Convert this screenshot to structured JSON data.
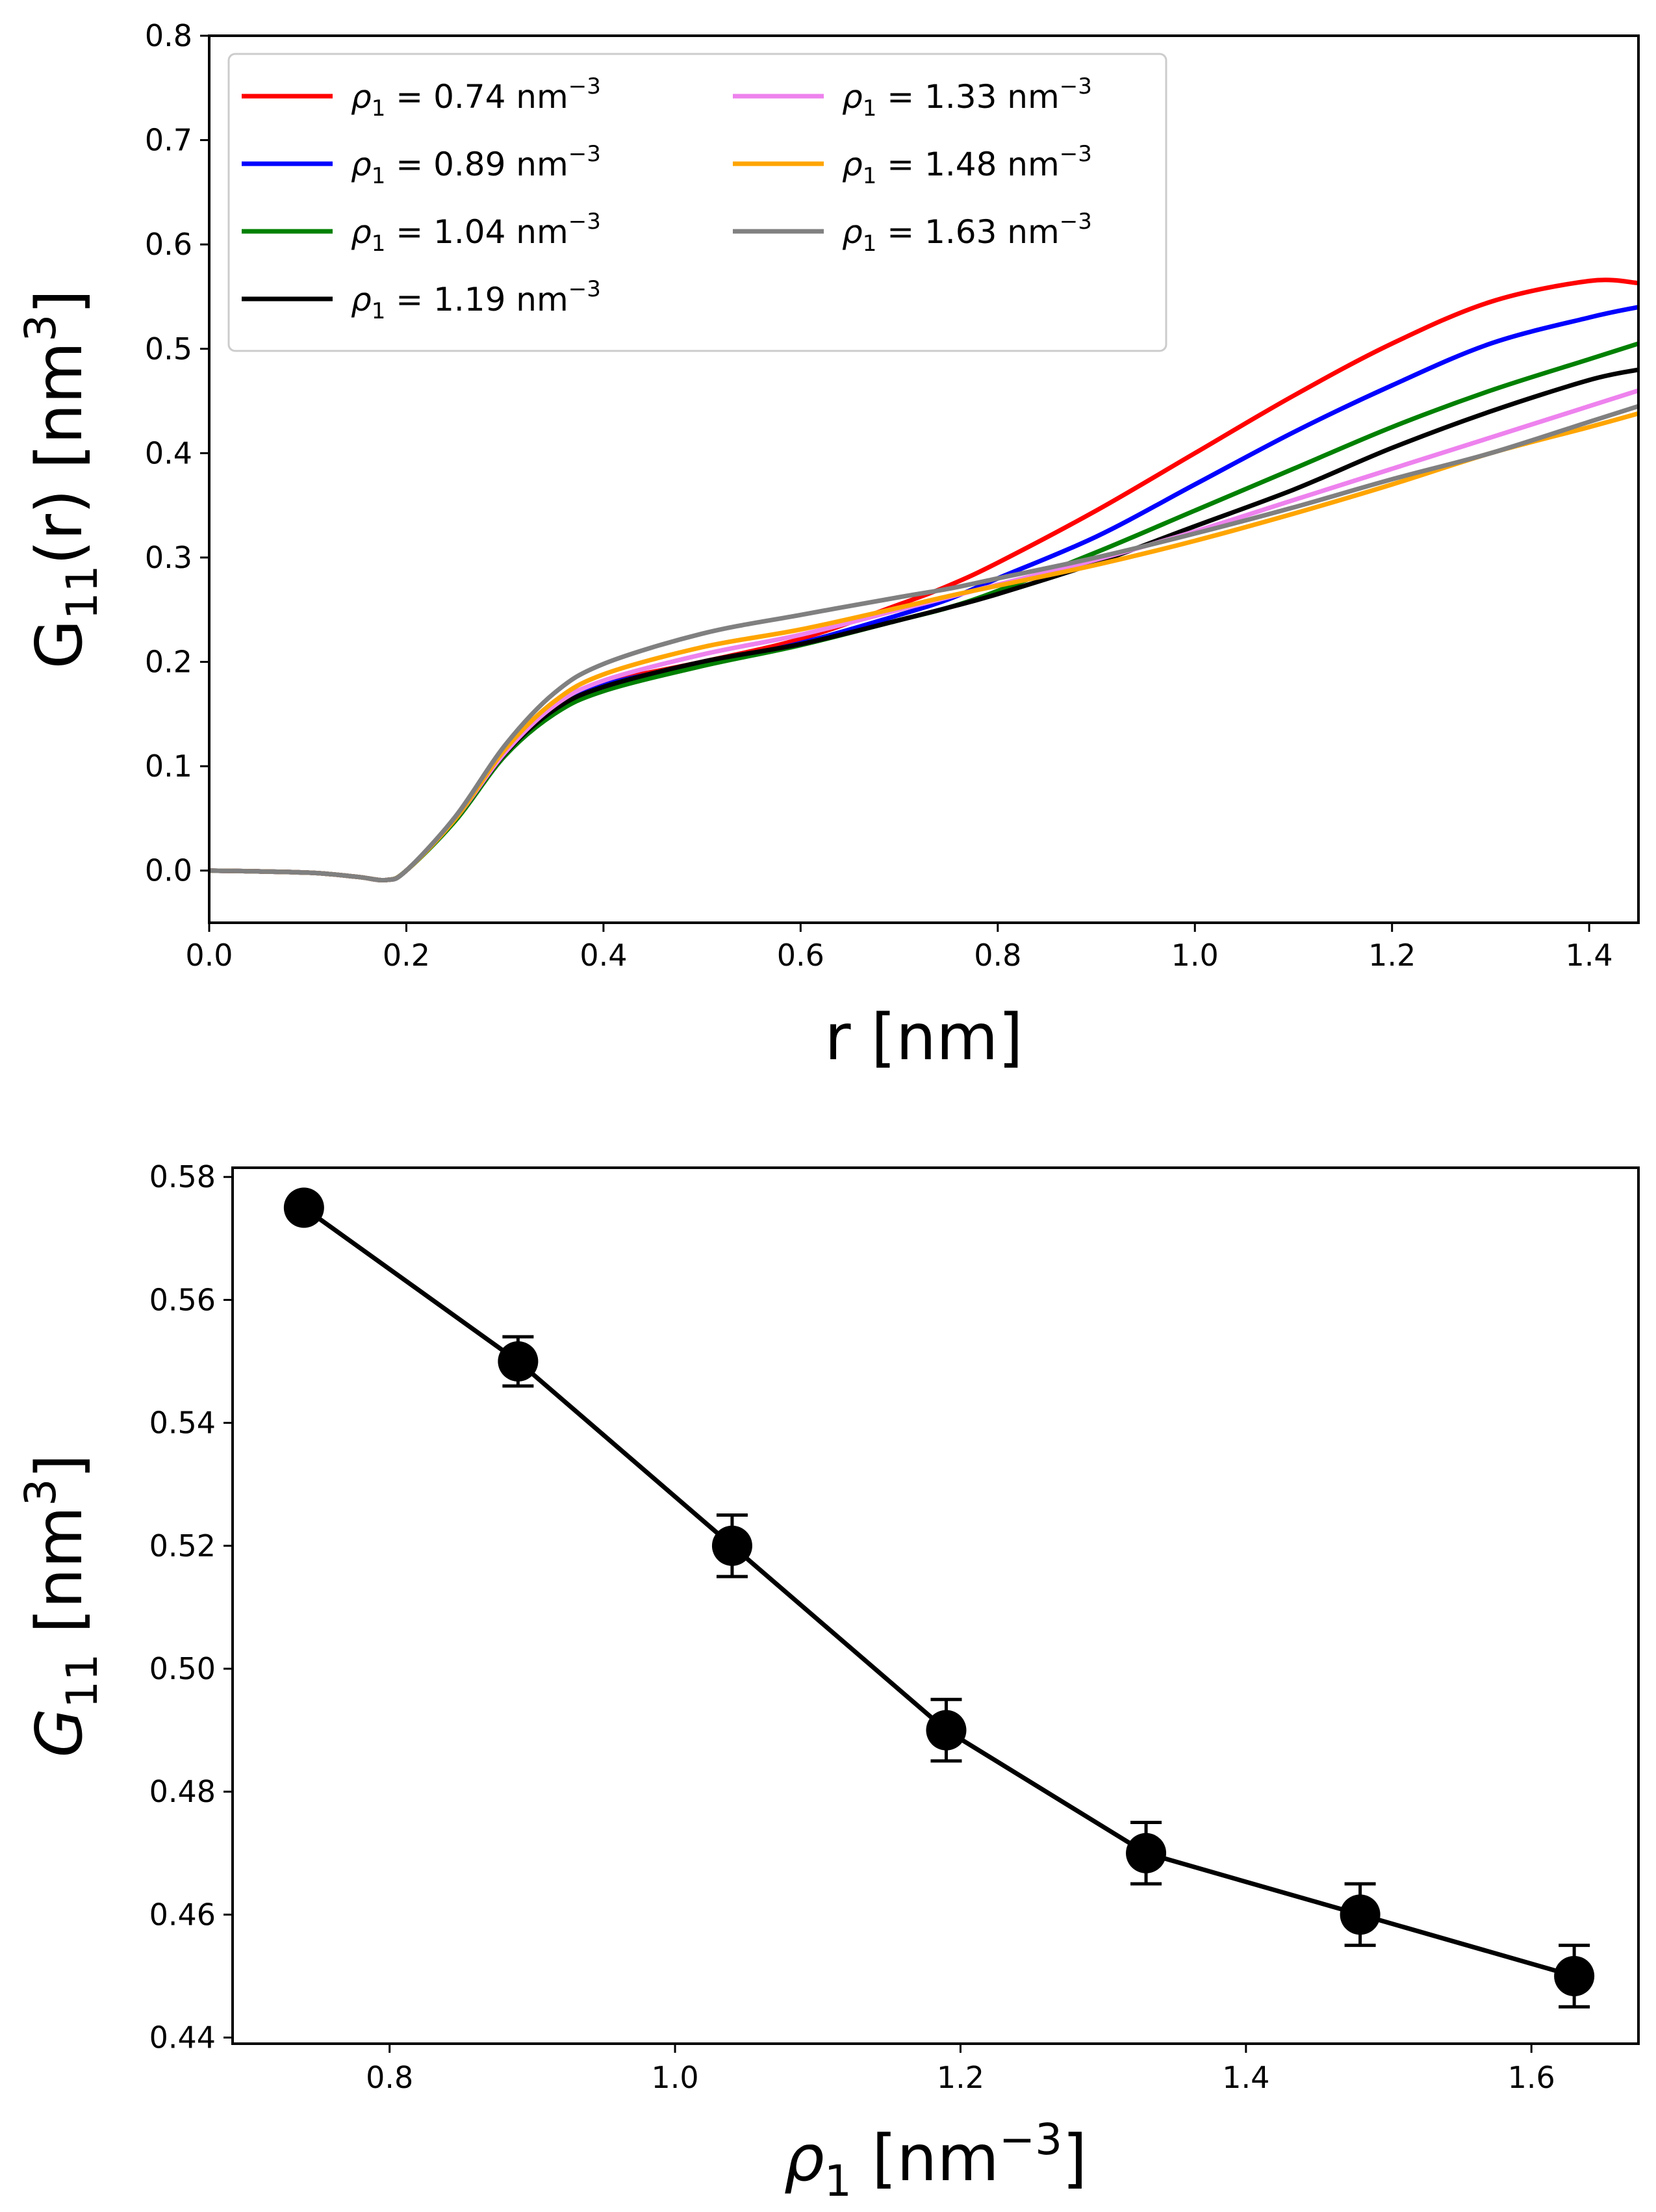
{
  "chart_data": [
    {
      "type": "line",
      "title": "",
      "xlabel": "r [nm]",
      "ylabel": "G11(r) [nm3]",
      "xlim": [
        0.0,
        1.45
      ],
      "ylim": [
        -0.05,
        0.8
      ],
      "xticks": [
        "0.0",
        "0.2",
        "0.4",
        "0.6",
        "0.8",
        "1.0",
        "1.2",
        "1.4"
      ],
      "yticks": [
        "0.0",
        "0.1",
        "0.2",
        "0.3",
        "0.4",
        "0.5",
        "0.6",
        "0.7",
        "0.8"
      ],
      "grid": false,
      "legend_position": "upper-left, two columns",
      "legend_label_prefix": "ρ1 = ",
      "legend_label_unit": "nm",
      "legend_label_exponent": "−3",
      "x": [
        0.0,
        0.1,
        0.15,
        0.18,
        0.2,
        0.25,
        0.3,
        0.35,
        0.4,
        0.5,
        0.6,
        0.7,
        0.75,
        0.8,
        0.9,
        1.0,
        1.1,
        1.2,
        1.3,
        1.4,
        1.45
      ],
      "series": [
        {
          "name": "0.74",
          "color": "#ff0000",
          "values": [
            0.0,
            -0.002,
            -0.006,
            -0.009,
            0.0,
            0.05,
            0.115,
            0.16,
            0.18,
            0.2,
            0.222,
            0.255,
            0.273,
            0.295,
            0.345,
            0.4,
            0.455,
            0.505,
            0.545,
            0.565,
            0.563
          ]
        },
        {
          "name": "0.89",
          "color": "#0000ff",
          "values": [
            0.0,
            -0.002,
            -0.006,
            -0.009,
            0.0,
            0.05,
            0.113,
            0.156,
            0.178,
            0.198,
            0.218,
            0.245,
            0.26,
            0.28,
            0.32,
            0.37,
            0.42,
            0.465,
            0.505,
            0.53,
            0.54
          ]
        },
        {
          "name": "1.04",
          "color": "#008000",
          "values": [
            0.0,
            -0.002,
            -0.006,
            -0.009,
            0.0,
            0.048,
            0.11,
            0.15,
            0.172,
            0.196,
            0.216,
            0.24,
            0.252,
            0.268,
            0.305,
            0.345,
            0.385,
            0.425,
            0.46,
            0.49,
            0.505
          ]
        },
        {
          "name": "1.19",
          "color": "#000000",
          "values": [
            0.0,
            -0.002,
            -0.006,
            -0.009,
            0.0,
            0.05,
            0.112,
            0.154,
            0.176,
            0.2,
            0.217,
            0.24,
            0.252,
            0.265,
            0.295,
            0.33,
            0.365,
            0.405,
            0.44,
            0.47,
            0.48
          ]
        },
        {
          "name": "1.33",
          "color": "#ee82ee",
          "values": [
            0.0,
            -0.002,
            -0.006,
            -0.009,
            0.0,
            0.05,
            0.113,
            0.158,
            0.182,
            0.207,
            0.226,
            0.25,
            0.262,
            0.274,
            0.298,
            0.325,
            0.355,
            0.385,
            0.415,
            0.445,
            0.46
          ]
        },
        {
          "name": "1.48",
          "color": "#ffa500",
          "values": [
            0.0,
            -0.002,
            -0.006,
            -0.009,
            0.0,
            0.05,
            0.116,
            0.162,
            0.188,
            0.214,
            0.231,
            0.252,
            0.263,
            0.273,
            0.293,
            0.316,
            0.342,
            0.37,
            0.4,
            0.425,
            0.438
          ]
        },
        {
          "name": "1.63",
          "color": "#808080",
          "values": [
            0.0,
            -0.002,
            -0.006,
            -0.009,
            0.0,
            0.052,
            0.12,
            0.17,
            0.198,
            0.227,
            0.245,
            0.262,
            0.27,
            0.28,
            0.3,
            0.323,
            0.348,
            0.375,
            0.4,
            0.43,
            0.445
          ]
        }
      ]
    },
    {
      "type": "line",
      "title": "",
      "xlabel": "ρ1 [nm−3]",
      "ylabel": "G11 [nm3]",
      "xlim": [
        0.69,
        1.675
      ],
      "ylim": [
        0.439,
        0.5815
      ],
      "xticks": [
        "0.8",
        "1.0",
        "1.2",
        "1.4",
        "1.6"
      ],
      "yticks": [
        "0.44",
        "0.46",
        "0.48",
        "0.50",
        "0.52",
        "0.54",
        "0.56",
        "0.58"
      ],
      "grid": false,
      "markers": "filled circles with error bars",
      "color": "#000000",
      "x": [
        0.74,
        0.89,
        1.04,
        1.19,
        1.33,
        1.48,
        1.63
      ],
      "values": [
        0.575,
        0.55,
        0.52,
        0.49,
        0.47,
        0.46,
        0.45
      ],
      "errors": [
        0.001,
        0.004,
        0.005,
        0.005,
        0.005,
        0.005,
        0.005
      ]
    }
  ]
}
